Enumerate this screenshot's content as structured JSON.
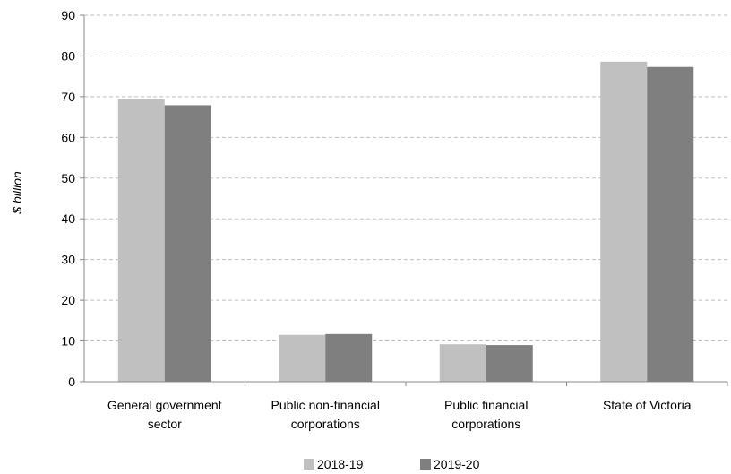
{
  "chart_data": {
    "type": "bar",
    "categories": [
      [
        "General government",
        "sector"
      ],
      [
        "Public non-financial",
        "corporations"
      ],
      [
        "Public financial",
        "corporations"
      ],
      [
        "State of Victoria"
      ]
    ],
    "series": [
      {
        "name": "2018-19",
        "values": [
          69.4,
          11.5,
          9.2,
          78.6
        ],
        "color": "#c0c0c0"
      },
      {
        "name": "2019-20",
        "values": [
          67.9,
          11.7,
          9.0,
          77.3
        ],
        "color": "#7f7f7f"
      }
    ],
    "xlabel": "",
    "ylabel": "$ billion",
    "ylim": [
      0,
      90
    ],
    "yticks": [
      0,
      10,
      20,
      30,
      40,
      50,
      60,
      70,
      80,
      90
    ],
    "grid": "horizontal dashed",
    "legend": "bottom-center"
  }
}
